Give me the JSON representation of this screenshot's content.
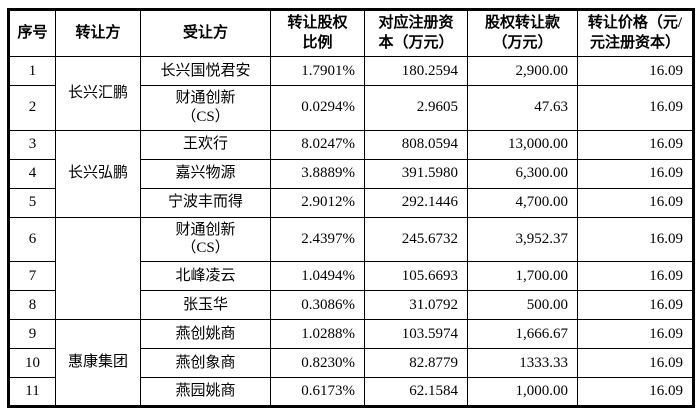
{
  "colors": {
    "background": "#ffffff",
    "border": "#000000",
    "text": "#000000"
  },
  "table": {
    "headers": [
      "序号",
      "转让方",
      "受让方",
      "转让股权\n比例",
      "对应注册资\n本（万元）",
      "股权转让款\n（万元）",
      "转让价格（元/\n元注册资本）"
    ],
    "transferor_groups": [
      {
        "label": "长兴汇鹏",
        "rows": 2
      },
      {
        "label": "长兴弘鹏",
        "rows": 3
      },
      {
        "label": "",
        "rows": 3
      },
      {
        "label": "惠康集团",
        "rows": 3
      }
    ],
    "rows": [
      {
        "no": "1",
        "transferee": "长兴国悦君安",
        "ratio": "1.7901%",
        "capital": "180.2594",
        "payment": "2,900.00",
        "price": "16.09"
      },
      {
        "no": "2",
        "transferee": "财通创新\n（CS）",
        "ratio": "0.0294%",
        "capital": "2.9605",
        "payment": "47.63",
        "price": "16.09"
      },
      {
        "no": "3",
        "transferee": "王欢行",
        "ratio": "8.0247%",
        "capital": "808.0594",
        "payment": "13,000.00",
        "price": "16.09"
      },
      {
        "no": "4",
        "transferee": "嘉兴物源",
        "ratio": "3.8889%",
        "capital": "391.5980",
        "payment": "6,300.00",
        "price": "16.09"
      },
      {
        "no": "5",
        "transferee": "宁波丰而得",
        "ratio": "2.9012%",
        "capital": "292.1446",
        "payment": "4,700.00",
        "price": "16.09"
      },
      {
        "no": "6",
        "transferee": "财通创新\n（CS）",
        "ratio": "2.4397%",
        "capital": "245.6732",
        "payment": "3,952.37",
        "price": "16.09"
      },
      {
        "no": "7",
        "transferee": "北峰凌云",
        "ratio": "1.0494%",
        "capital": "105.6693",
        "payment": "1,700.00",
        "price": "16.09"
      },
      {
        "no": "8",
        "transferee": "张玉华",
        "ratio": "0.3086%",
        "capital": "31.0792",
        "payment": "500.00",
        "price": "16.09"
      },
      {
        "no": "9",
        "transferee": "燕创姚商",
        "ratio": "1.0288%",
        "capital": "103.5974",
        "payment": "1,666.67",
        "price": "16.09"
      },
      {
        "no": "10",
        "transferee": "燕创象商",
        "ratio": "0.8230%",
        "capital": "82.8779",
        "payment": "1333.33",
        "price": "16.09"
      },
      {
        "no": "11",
        "transferee": "燕园姚商",
        "ratio": "0.6173%",
        "capital": "62.1584",
        "payment": "1,000.00",
        "price": "16.09"
      }
    ]
  }
}
